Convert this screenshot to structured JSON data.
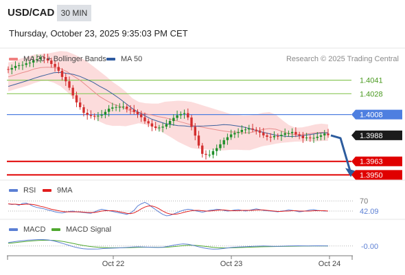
{
  "header": {
    "symbol": "USD/CAD",
    "timeframe": "30 MIN",
    "datetime": "Thursday, October 23, 2025 9:35:03 PM CET"
  },
  "credit": "Research © 2025 Trading Central",
  "colors": {
    "up": "#1f8f2a",
    "down": "#d32f2f",
    "band": "#fbd0d0",
    "ma20": "#e98d8d",
    "ma50": "#3b5f9c",
    "current": "#4e7fe0",
    "resistance": "#8cc85a",
    "support": "#e00000",
    "rsi": "#5b7fd4",
    "rsi_ma": "#e11d1d",
    "macd": "#5b7fd4",
    "macd_signal": "#4fa82f"
  },
  "legend_main": [
    {
      "label": "MA 20 + Bollinger Bands",
      "color": "#f08080"
    },
    {
      "label": "MA 50",
      "color": "#2e5aa0"
    }
  ],
  "legend_rsi": [
    {
      "label": "RSI",
      "color": "#5b7fd4"
    },
    {
      "label": "9MA",
      "color": "#e11d1d"
    }
  ],
  "legend_macd": [
    {
      "label": "MACD",
      "color": "#5b7fd4"
    },
    {
      "label": "MACD Signal",
      "color": "#4fa82f"
    }
  ],
  "chart_data": {
    "type": "candlestick",
    "ylim": [
      1.3945,
      1.4052
    ],
    "x_ticks": [
      "Oct 22",
      "Oct 23",
      "Oct 24"
    ],
    "current_price": "1.3988",
    "levels": [
      {
        "label": "1.4041",
        "value": 1.4041,
        "kind": "resistance"
      },
      {
        "label": "1.4028",
        "value": 1.4028,
        "kind": "resistance"
      },
      {
        "label": "1.4008",
        "value": 1.4008,
        "kind": "pivot"
      },
      {
        "label": "1.3963",
        "value": 1.3963,
        "kind": "support"
      },
      {
        "label": "1.3950",
        "value": 1.395,
        "kind": "support"
      }
    ],
    "forecast": {
      "from": 1.3988,
      "to": 1.395
    },
    "close": [
      1.40512,
      1.40527,
      1.40547,
      1.40553,
      1.40557,
      1.40572,
      1.40579,
      1.40603,
      1.40612,
      1.40629,
      1.40619,
      1.406,
      1.40566,
      1.40537,
      1.405,
      1.40441,
      1.404,
      1.40338,
      1.40265,
      1.40196,
      1.40151,
      1.40097,
      1.40076,
      1.40066,
      1.40062,
      1.40069,
      1.40079,
      1.40106,
      1.40136,
      1.40148,
      1.40152,
      1.40153,
      1.40156,
      1.40135,
      1.40127,
      1.40106,
      1.40082,
      1.40054,
      1.40016,
      1.39995,
      1.39965,
      1.39951,
      1.39955,
      1.39964,
      1.39987,
      1.40018,
      1.40048,
      1.40073,
      1.40085,
      1.40093,
      1.40052,
      1.39963,
      1.39878,
      1.39782,
      1.39702,
      1.39693,
      1.39694,
      1.39729,
      1.39757,
      1.39794,
      1.39834,
      1.39862,
      1.39889,
      1.39903,
      1.39913,
      1.39932,
      1.39937,
      1.39946,
      1.39935,
      1.39923,
      1.39906,
      1.3988,
      1.39866,
      1.39862,
      1.39874,
      1.39873,
      1.39885,
      1.39901,
      1.39901,
      1.39913,
      1.39889,
      1.39878,
      1.39853,
      1.39859,
      1.39853,
      1.39856,
      1.39867,
      1.3988,
      1.39897,
      1.39882
    ],
    "ma50": [
      1.4035,
      1.40369,
      1.40388,
      1.40408,
      1.40429,
      1.40448,
      1.40465,
      1.40482,
      1.40485,
      1.40476,
      1.40465,
      1.40446,
      1.40419,
      1.4039,
      1.40352,
      1.40319,
      1.40278,
      1.40235,
      1.40187,
      1.40138,
      1.401,
      1.40066,
      1.40035,
      1.40014,
      1.39994,
      1.39983,
      1.39974,
      1.39971,
      1.39964,
      1.39969,
      1.3997,
      1.39973,
      1.39977,
      1.39983,
      1.3998,
      1.39971,
      1.39961,
      1.39945,
      1.39926,
      1.3991,
      1.39896,
      1.39882,
      1.39875,
      1.39869,
      1.39871,
      1.39877,
      1.39886,
      1.39895,
      1.39904,
      1.39904
    ],
    "bb_upper": [
      1.40581,
      1.40596,
      1.4062,
      1.40635,
      1.40656,
      1.40662,
      1.40666,
      1.40678,
      1.4069,
      1.40685,
      1.40661,
      1.40631,
      1.40592,
      1.40545,
      1.40496,
      1.40447,
      1.40393,
      1.4035,
      1.403,
      1.40237,
      1.40201,
      1.40189,
      1.40186,
      1.40186,
      1.40203,
      1.40208,
      1.40213,
      1.4021,
      1.40202,
      1.40184,
      1.40164,
      1.40145,
      1.40126,
      1.40107,
      1.40086,
      1.40079,
      1.4007,
      1.40073,
      1.40081,
      1.40097,
      1.40104,
      1.40078,
      1.40026,
      1.39979,
      1.39953,
      1.39957,
      1.39969,
      1.39985,
      1.39992,
      1.39985
    ],
    "bb_lower": [
      1.40303,
      1.40322,
      1.4034,
      1.40358,
      1.40382,
      1.40401,
      1.40404,
      1.40385,
      1.40352,
      1.40299,
      1.40238,
      1.40188,
      1.40125,
      1.40066,
      1.40012,
      1.39984,
      1.39971,
      1.39972,
      1.39968,
      1.39982,
      1.39996,
      1.39984,
      1.39965,
      1.39934,
      1.39895,
      1.39859,
      1.39819,
      1.39789,
      1.3976,
      1.3975,
      1.39746,
      1.39742,
      1.39738,
      1.39736,
      1.39741,
      1.39742,
      1.39739,
      1.39738,
      1.39757,
      1.39777,
      1.39787,
      1.398,
      1.39809,
      1.39814,
      1.3982,
      1.39822,
      1.39823,
      1.39822,
      1.39826,
      1.39828
    ],
    "rsi": {
      "levels": [
        "70",
        "42.09"
      ],
      "level_values": [
        70,
        42.09
      ],
      "ylim": [
        25,
        78
      ],
      "rsi": [
        62,
        60,
        61,
        58,
        63,
        64,
        60,
        55,
        52,
        50,
        48,
        45,
        43,
        40,
        38,
        37,
        39,
        41,
        42,
        40,
        39,
        38,
        37,
        36,
        40,
        44,
        47,
        45,
        43,
        41,
        39,
        37,
        35,
        33,
        37,
        44,
        56,
        62,
        66,
        61,
        53,
        46,
        39,
        33,
        29,
        30,
        34,
        38,
        42,
        45,
        47,
        46,
        43,
        41,
        39,
        41,
        44,
        45,
        47,
        46,
        44,
        42,
        43,
        45,
        46,
        44,
        42,
        44,
        46,
        48,
        46,
        44,
        43,
        42,
        41,
        40,
        42,
        43,
        45,
        44,
        42,
        40,
        41,
        43,
        45,
        46,
        44,
        43,
        42,
        42
      ],
      "ma": [
        62,
        61,
        61,
        60,
        60,
        61,
        61,
        60,
        58,
        55,
        53,
        50,
        47,
        45,
        43,
        41,
        40,
        40,
        40,
        40,
        40,
        39,
        38,
        38,
        38,
        40,
        42,
        43,
        43,
        43,
        42,
        40,
        38,
        36,
        35,
        37,
        42,
        48,
        53,
        56,
        56,
        53,
        48,
        42,
        37,
        34,
        33,
        34,
        36,
        39,
        41,
        43,
        44,
        44,
        43,
        42,
        42,
        43,
        44,
        45,
        45,
        44,
        43,
        43,
        43,
        44,
        44,
        44,
        44,
        45,
        45,
        45,
        44,
        43,
        42,
        41,
        41,
        42,
        42,
        43,
        43,
        42,
        42,
        42,
        42,
        43,
        43,
        43,
        43,
        42
      ]
    },
    "macd": {
      "levels": [
        "-0.00"
      ],
      "ylim": [
        -0.0009,
        0.0011
      ],
      "macd": [
        0.0004,
        0.00048,
        0.00056,
        0.00062,
        0.00068,
        0.00071,
        0.00074,
        0.00074,
        0.0007,
        0.0006,
        0.00045,
        0.00028,
        0.0001,
        -8e-05,
        -0.00022,
        -0.00032,
        -0.00036,
        -0.00036,
        -0.00035,
        -0.0003,
        -0.00027,
        -0.00025,
        -0.00023,
        -0.0002,
        -0.00016,
        -0.00012,
        -0.0001,
        -0.00012,
        -0.00014,
        -0.00016,
        -0.00018,
        -0.00014,
        -4e-05,
        8e-05,
        0.00018,
        0.00024,
        0.0002,
        8e-05,
        -8e-05,
        -0.00022,
        -0.00032,
        -0.00037,
        -0.00036,
        -0.0003,
        -0.00022,
        -0.00016,
        -0.00012,
        -0.0001,
        -7e-05,
        -4e-05,
        -2e-05,
        0.0,
        -2e-05,
        -4e-05,
        -4e-05,
        -2e-05,
        0.0,
        1e-05,
        2e-05,
        1e-05,
        0.0,
        1e-05,
        2e-05,
        1e-05,
        0.0
      ],
      "signal": [
        0.0003,
        0.00036,
        0.00043,
        0.00049,
        0.00055,
        0.0006,
        0.00064,
        0.00066,
        0.00067,
        0.00065,
        0.0006,
        0.00052,
        0.00041,
        0.00029,
        0.00017,
        6e-05,
        -3e-05,
        -0.0001,
        -0.00015,
        -0.00018,
        -0.0002,
        -0.00021,
        -0.00021,
        -0.00021,
        -0.0002,
        -0.00018,
        -0.00016,
        -0.00015,
        -0.00015,
        -0.00015,
        -0.00016,
        -0.00016,
        -0.00013,
        -8e-05,
        -2e-05,
        4e-05,
        8e-05,
        8e-05,
        4e-05,
        -2e-05,
        -9e-05,
        -0.00016,
        -0.00021,
        -0.00023,
        -0.00023,
        -0.00021,
        -0.00019,
        -0.00017,
        -0.00015,
        -0.00013,
        -0.00011,
        -9e-05,
        -8e-05,
        -7e-05,
        -6e-05,
        -5e-05,
        -4e-05,
        -3e-05,
        -2e-05,
        -1e-05,
        -1e-05,
        0.0,
        0.0,
        0.0,
        0.0
      ]
    }
  }
}
